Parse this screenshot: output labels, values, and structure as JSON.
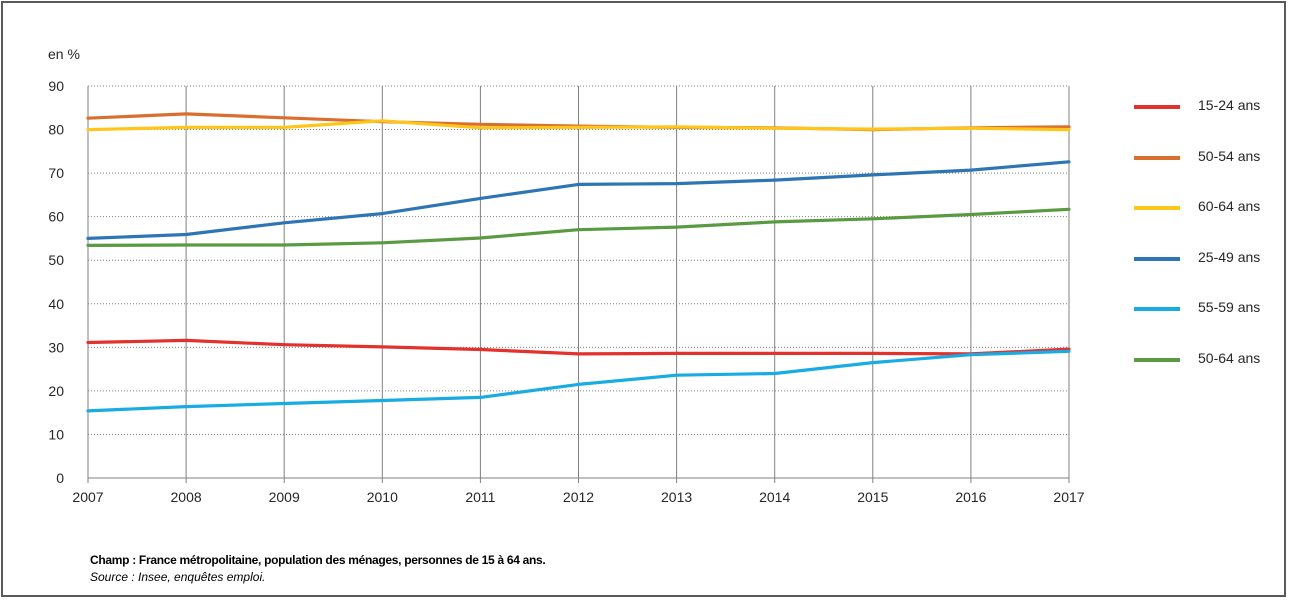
{
  "chart_data": {
    "type": "line",
    "ylabel": "en %",
    "ylim": [
      0,
      90
    ],
    "yticks": [
      0,
      10,
      20,
      30,
      40,
      50,
      60,
      70,
      80,
      90
    ],
    "x": [
      "2007",
      "2008",
      "2009",
      "2010",
      "2011",
      "2012",
      "2013",
      "2014",
      "2015",
      "2016",
      "2017"
    ],
    "grid": true,
    "legend_position": "right",
    "series": [
      {
        "name": "15-24 ans",
        "color": "#e3312d",
        "values": [
          31.1,
          31.6,
          30.6,
          30.1,
          29.5,
          28.5,
          28.6,
          28.6,
          28.6,
          28.5,
          29.6
        ]
      },
      {
        "name": "50-54 ans",
        "color": "#d96f2e",
        "values": [
          82.6,
          83.6,
          82.7,
          81.8,
          81.2,
          80.8,
          80.5,
          80.4,
          80.0,
          80.4,
          80.6
        ]
      },
      {
        "name": "60-64 ans",
        "color": "#ffc619",
        "values": [
          80.0,
          80.5,
          80.5,
          82.0,
          80.4,
          80.5,
          80.6,
          80.3,
          80.1,
          80.3,
          80.0
        ]
      },
      {
        "name": "25-49 ans",
        "color": "#2e75b6",
        "values": [
          55.0,
          55.9,
          58.6,
          60.7,
          64.2,
          67.4,
          67.6,
          68.4,
          69.6,
          70.7,
          72.6
        ]
      },
      {
        "name": "55-59 ans",
        "color": "#18ace3",
        "values": [
          15.4,
          16.4,
          17.1,
          17.8,
          18.5,
          21.5,
          23.6,
          24.0,
          26.5,
          28.3,
          29.1
        ]
      },
      {
        "name": "50-64 ans",
        "color": "#5a9a43",
        "values": [
          53.4,
          53.5,
          53.5,
          54.0,
          55.1,
          57.0,
          57.6,
          58.8,
          59.5,
          60.5,
          61.7
        ]
      }
    ]
  },
  "notes": {
    "champ": "Champ : France métropolitaine, population des ménages, personnes de 15 à 64 ans.",
    "source": "Source : Insee, enquêtes emploi."
  }
}
